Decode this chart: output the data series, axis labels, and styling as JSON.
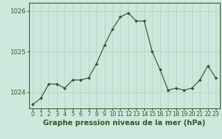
{
  "x": [
    0,
    1,
    2,
    3,
    4,
    5,
    6,
    7,
    8,
    9,
    10,
    11,
    12,
    13,
    14,
    15,
    16,
    17,
    18,
    19,
    20,
    21,
    22,
    23
  ],
  "y": [
    1023.7,
    1023.85,
    1024.2,
    1024.2,
    1024.1,
    1024.3,
    1024.3,
    1024.35,
    1024.7,
    1025.15,
    1025.55,
    1025.85,
    1025.95,
    1025.75,
    1025.75,
    1025.0,
    1024.55,
    1024.05,
    1024.1,
    1024.05,
    1024.1,
    1024.3,
    1024.65,
    1024.35
  ],
  "ylim": [
    1023.6,
    1026.2
  ],
  "yticks": [
    1024,
    1025,
    1026
  ],
  "xticks": [
    0,
    1,
    2,
    3,
    4,
    5,
    6,
    7,
    8,
    9,
    10,
    11,
    12,
    13,
    14,
    15,
    16,
    17,
    18,
    19,
    20,
    21,
    22,
    23
  ],
  "line_color": "#2d5a27",
  "marker_color": "#2d5a27",
  "bg_color": "#cce8dc",
  "plot_bg_color": "#cce8dc",
  "grid_color": "#aacfbf",
  "xlabel": "Graphe pression niveau de la mer (hPa)",
  "xlabel_fontsize": 7.5,
  "tick_fontsize": 6.0,
  "ytick_fontsize": 6.5
}
